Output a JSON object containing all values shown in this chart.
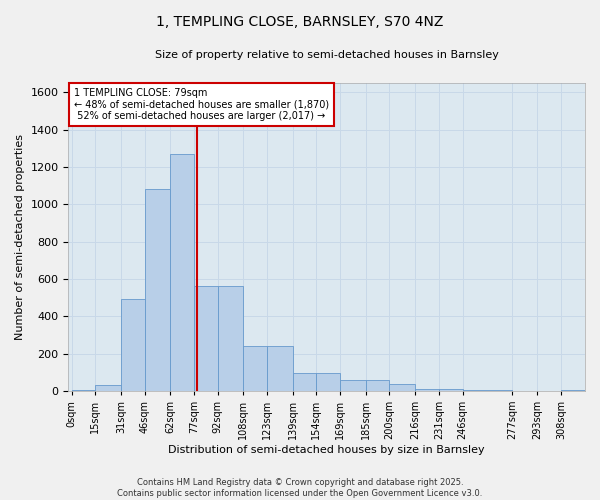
{
  "title": "1, TEMPLING CLOSE, BARNSLEY, S70 4NZ",
  "subtitle": "Size of property relative to semi-detached houses in Barnsley",
  "xlabel": "Distribution of semi-detached houses by size in Barnsley",
  "ylabel": "Number of semi-detached properties",
  "property_label": "1 TEMPLING CLOSE: 79sqm",
  "pct_smaller": 48,
  "pct_larger": 52,
  "count_smaller": 1870,
  "count_larger": 2017,
  "bin_labels": [
    "0sqm",
    "15sqm",
    "31sqm",
    "46sqm",
    "62sqm",
    "77sqm",
    "92sqm",
    "108sqm",
    "123sqm",
    "139sqm",
    "154sqm",
    "169sqm",
    "185sqm",
    "200sqm",
    "216sqm",
    "231sqm",
    "246sqm",
    "277sqm",
    "293sqm",
    "308sqm"
  ],
  "bin_lefts": [
    0,
    15,
    31,
    46,
    62,
    77,
    92,
    108,
    123,
    139,
    154,
    169,
    185,
    200,
    216,
    231,
    246,
    277,
    293,
    308
  ],
  "bin_widths": [
    15,
    16,
    15,
    16,
    15,
    15,
    16,
    15,
    16,
    15,
    15,
    16,
    15,
    16,
    15,
    15,
    31,
    16,
    15,
    15
  ],
  "bar_heights": [
    5,
    30,
    490,
    1080,
    1270,
    560,
    560,
    240,
    240,
    95,
    95,
    60,
    60,
    35,
    10,
    10,
    5,
    0,
    0,
    3
  ],
  "bar_color": "#b8cfe8",
  "bar_edge_color": "#6699cc",
  "vline_x": 79,
  "vline_color": "#cc0000",
  "annotation_box_color": "#cc0000",
  "ylim": [
    0,
    1650
  ],
  "yticks": [
    0,
    200,
    400,
    600,
    800,
    1000,
    1200,
    1400,
    1600
  ],
  "grid_color": "#c8d8e8",
  "background_color": "#dce8f0",
  "fig_background": "#f0f0f0",
  "footer": "Contains HM Land Registry data © Crown copyright and database right 2025.\nContains public sector information licensed under the Open Government Licence v3.0."
}
